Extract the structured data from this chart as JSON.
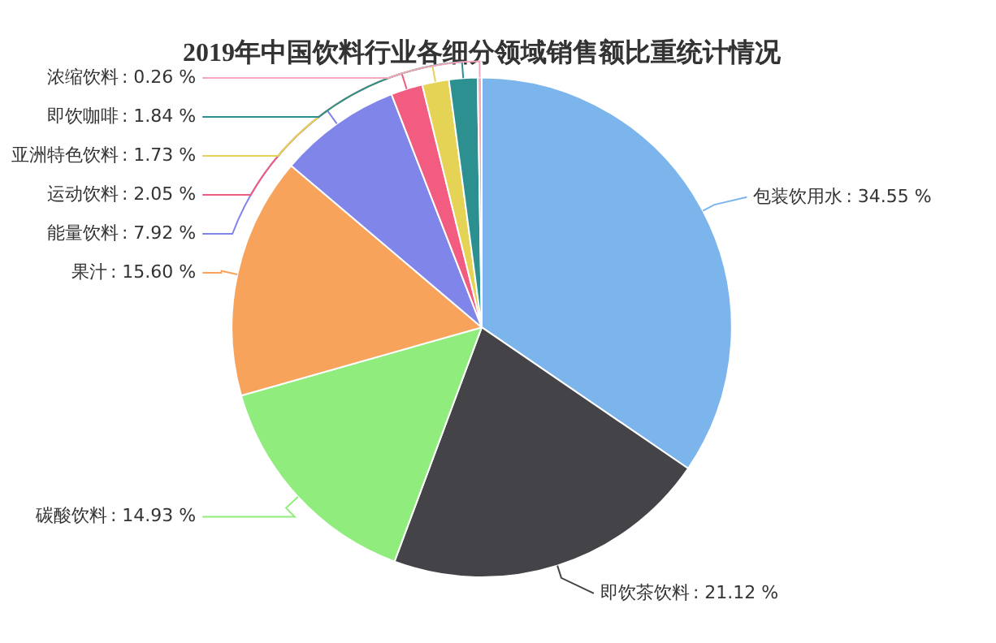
{
  "chart_data": {
    "type": "pie",
    "title": "2019年中国饮料行业各细分领域销售额比重统计情况",
    "categories": [
      "包装饮用水",
      "即饮茶饮料",
      "碳酸饮料",
      "果汁",
      "能量饮料",
      "运动饮料",
      "亚洲特色饮料",
      "即饮咖啡",
      "浓缩饮料"
    ],
    "values": [
      34.55,
      21.12,
      14.93,
      15.6,
      7.92,
      2.05,
      1.73,
      1.84,
      0.26
    ],
    "colors": [
      "#7cb5ec",
      "#434348",
      "#90ed7d",
      "#f7a35c",
      "#8085e9",
      "#f15c80",
      "#e4d354",
      "#2b908f",
      "#f2a7bc"
    ],
    "value_labels": [
      ": 34.55 %",
      ": 21.12 %",
      ": 14.93 %",
      ": 15.60 %",
      ": 7.92 %",
      ": 2.05 %",
      ": 1.73 %",
      ": 1.84 %",
      ": 0.26 %"
    ],
    "legend": false
  }
}
